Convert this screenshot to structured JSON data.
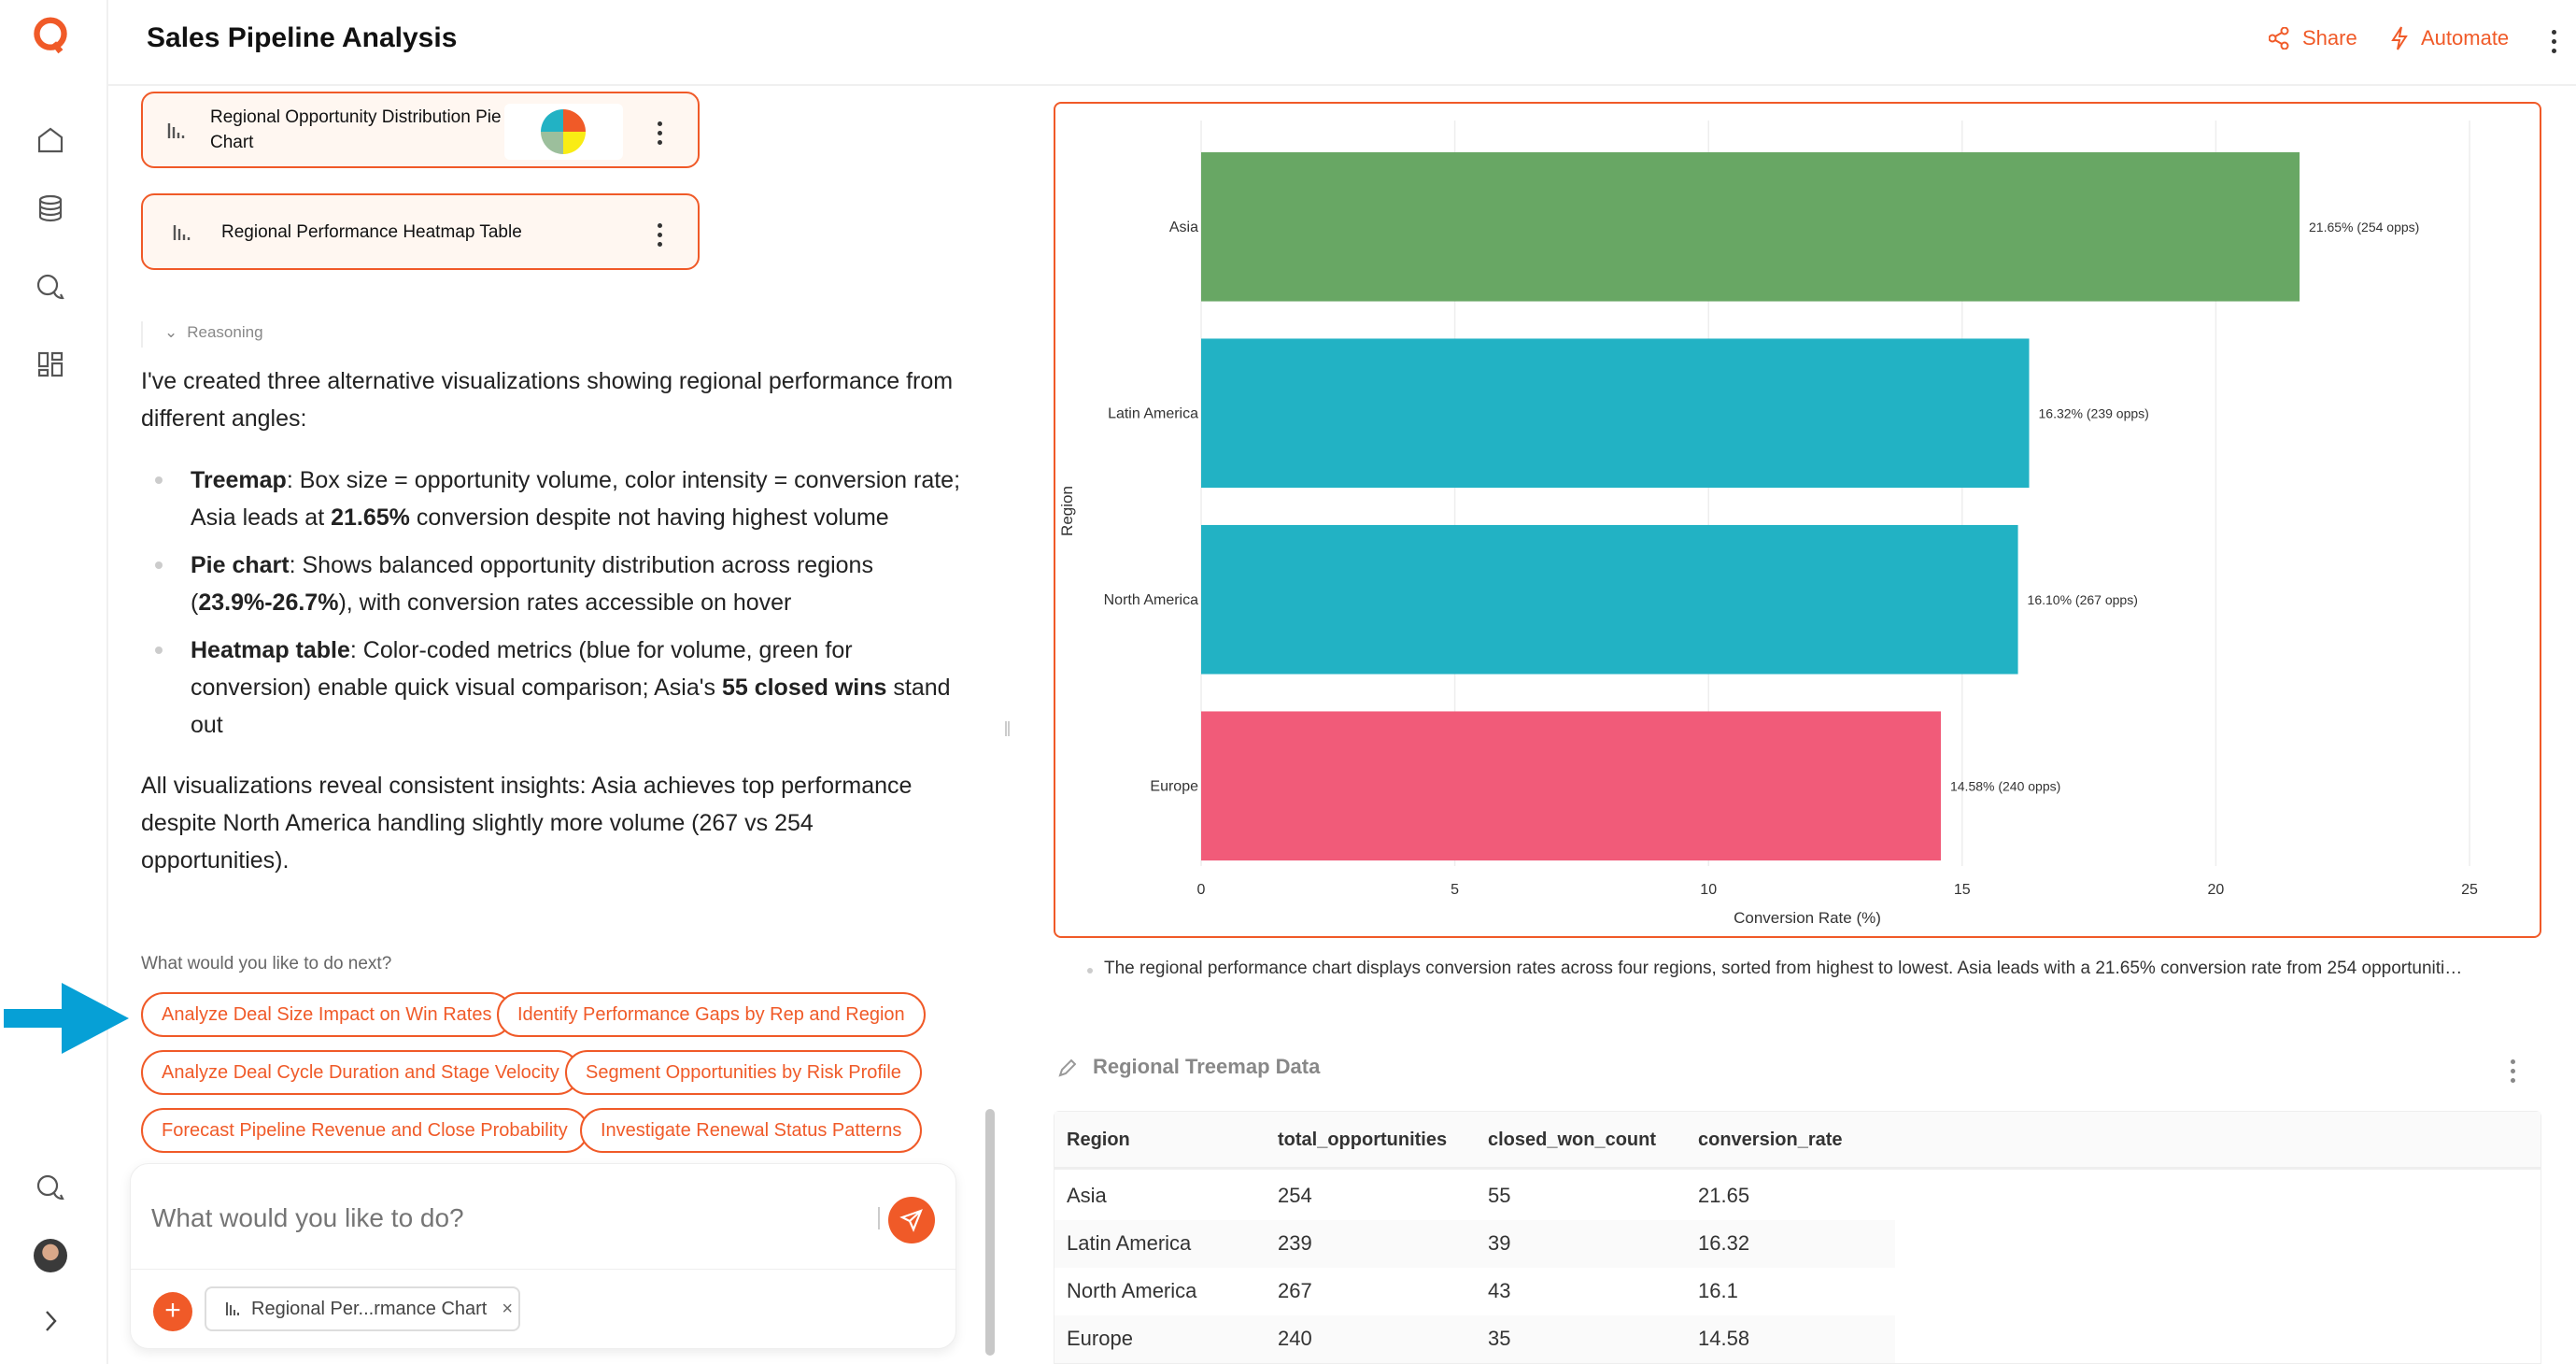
{
  "app": {
    "title": "Sales Pipeline Analysis",
    "accent": "#f05a28"
  },
  "header": {
    "share": "Share",
    "automate": "Automate"
  },
  "sidebar": {
    "icons": [
      "logo-icon",
      "home-icon",
      "database-icon",
      "chat-icon",
      "dashboard-icon",
      "chat-icon",
      "avatar",
      "chevron-right-icon"
    ]
  },
  "cards": [
    {
      "title_line1": "Regional Opportunity Distribution Pie",
      "title_line2": "Chart"
    },
    {
      "title": "Regional Performance Heatmap Table"
    }
  ],
  "reasoning": "Reasoning",
  "message": {
    "intro": "I've created three alternative visualizations showing regional performance from different angles:",
    "bullets": [
      {
        "b": "Treemap",
        "t1": ": Box size = opportunity volume, color intensity = conversion rate; Asia leads at ",
        "b2": "21.65%",
        "t2": " conversion despite not having highest volume"
      },
      {
        "b": "Pie chart",
        "t1": ": Shows balanced opportunity distribution across regions (",
        "b2": "23.9%-26.7%",
        "t2": "), with conversion rates accessible on hover"
      },
      {
        "b": "Heatmap table",
        "t1": ": Color-coded metrics (blue for volume, green for conversion) enable quick visual comparison; Asia's ",
        "b2": "55 closed wins",
        "t2": " stand out"
      }
    ],
    "summary": "All visualizations reveal consistent insights: Asia achieves top performance despite North America handling slightly more volume (267 vs 254 opportunities)."
  },
  "next": {
    "prompt": "What would you like to do next?",
    "suggestions": [
      "Analyze Deal Size Impact on Win Rates",
      "Identify Performance Gaps by Rep and Region",
      "Analyze Deal Cycle Duration and Stage Velocity",
      "Segment Opportunities by Risk Profile",
      "Forecast Pipeline Revenue and Close Probability",
      "Investigate Renewal Status Patterns"
    ]
  },
  "chat": {
    "placeholder": "What would you like to do?",
    "attachment": "Regional Per...rmance Chart"
  },
  "chart_data": {
    "type": "bar",
    "orientation": "horizontal",
    "categories": [
      "Asia",
      "Latin America",
      "North America",
      "Europe"
    ],
    "values": [
      21.65,
      16.32,
      16.1,
      14.58
    ],
    "data_labels": [
      "21.65% (254 opps)",
      "16.32% (239 opps)",
      "16.10% (267 opps)",
      "14.58% (240 opps)"
    ],
    "colors": [
      "#68a764",
      "#22b2c4",
      "#22b2c4",
      "#f15b79"
    ],
    "xlabel": "Conversion Rate (%)",
    "ylabel": "Region",
    "xlim": [
      0,
      25
    ],
    "xticks": [
      0,
      5,
      10,
      15,
      20,
      25
    ],
    "grid": true
  },
  "caption": "The regional performance chart displays conversion rates across four regions, sorted from highest to lowest. Asia leads with a 21.65% conversion rate from 254 opportuniti…",
  "table": {
    "title": "Regional Treemap Data",
    "columns": [
      "Region",
      "total_opportunities",
      "closed_won_count",
      "conversion_rate"
    ],
    "rows": [
      [
        "Asia",
        "254",
        "55",
        "21.65"
      ],
      [
        "Latin America",
        "239",
        "39",
        "16.32"
      ],
      [
        "North America",
        "267",
        "43",
        "16.1"
      ],
      [
        "Europe",
        "240",
        "35",
        "14.58"
      ]
    ]
  }
}
